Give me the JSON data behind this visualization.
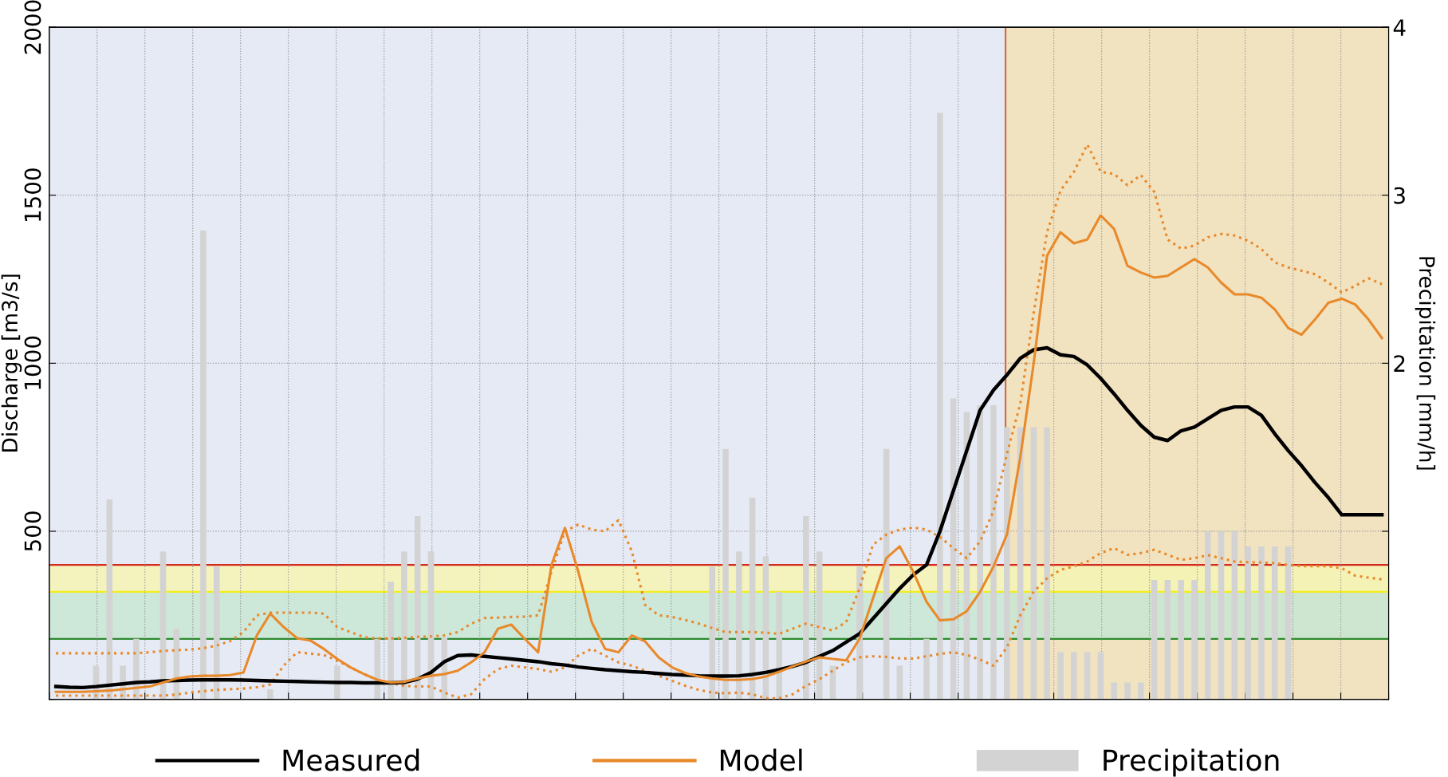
{
  "chart_data": {
    "type": "line",
    "ylabel": "Discharge [m3/s]",
    "y2label": "Precipitation [mm/h]",
    "categories": [
      null,
      null,
      null,
      null,
      null,
      null,
      null,
      null,
      null,
      null,
      null,
      null,
      null,
      null,
      null,
      null,
      null,
      null,
      null,
      null,
      null,
      null,
      null,
      null,
      null,
      null,
      null,
      null,
      null,
      null,
      null,
      null,
      null,
      null,
      null,
      null,
      null,
      null,
      null,
      null,
      null,
      null,
      null,
      null,
      null,
      null,
      null,
      null,
      null,
      null,
      null,
      null,
      null,
      null,
      null,
      null,
      null,
      null,
      null,
      null,
      null,
      null,
      null,
      null,
      null,
      null,
      null,
      null,
      null,
      null,
      null,
      null,
      null,
      null,
      null,
      null,
      null,
      null,
      null,
      null,
      null,
      null,
      null,
      null,
      null,
      null,
      null,
      null,
      null,
      null,
      null,
      null,
      null,
      null,
      null,
      null,
      null,
      null,
      null,
      null
    ],
    "ylim": [
      0,
      2000
    ],
    "yticks": [
      {
        "value": 0,
        "label": null
      },
      500,
      1000,
      1500,
      2000
    ],
    "y2lim": [
      0,
      4
    ],
    "y2ticks": [
      {
        "value": 0,
        "label": null
      },
      {
        "value": 1,
        "label": null
      },
      2,
      3,
      4
    ],
    "grid": true,
    "legend": "bottom",
    "tick_labels": "y",
    "series": [
      {
        "type": "bar",
        "name": "Precipitation",
        "color": "#d3d3d3",
        "axis": "y2",
        "values": [
          0,
          0,
          0,
          0.2,
          1.19,
          0.2,
          0.36,
          0,
          0.88,
          0.42,
          0,
          2.79,
          0.79,
          0,
          0,
          0,
          0.06,
          0,
          0,
          0,
          0,
          0.2,
          0,
          0,
          0.36,
          0.7,
          0.88,
          1.09,
          0.88,
          0.37,
          0,
          0,
          0,
          0,
          0,
          0,
          0,
          0,
          0,
          0,
          0,
          0,
          0,
          0,
          0,
          0,
          0,
          0,
          0,
          0.79,
          1.49,
          0.88,
          1.2,
          0.85,
          0.64,
          0,
          1.09,
          0.88,
          0.2,
          0,
          0.79,
          0,
          1.49,
          0.2,
          0,
          0.36,
          3.49,
          1.79,
          1.71,
          1.75,
          1.75,
          1.62,
          1.62,
          1.62,
          1.62,
          0.28,
          0.28,
          0.28,
          0.28,
          0.1,
          0.1,
          0.1,
          0.71,
          0.71,
          0.71,
          0.71,
          1.0,
          1.0,
          1.0,
          0.91,
          0.91,
          0.91,
          0.91,
          0,
          0,
          0,
          0,
          0,
          0,
          0
        ]
      },
      {
        "color": "#e8892a",
        "line_style": "dotted",
        "values": [
          137,
          137,
          137,
          137,
          137,
          137,
          137,
          140,
          144,
          146,
          148,
          152,
          160,
          173,
          200,
          250,
          258,
          258,
          258,
          258,
          255,
          215,
          200,
          185,
          181,
          181,
          183,
          186,
          187,
          190,
          200,
          225,
          242,
          243,
          245,
          246,
          250,
          380,
          500,
          520,
          505,
          500,
          533,
          440,
          280,
          250,
          245,
          236,
          225,
          212,
          200,
          200,
          200,
          198,
          195,
          210,
          225,
          215,
          205,
          230,
          330,
          460,
          490,
          505,
          511,
          505,
          483,
          450,
          420,
          470,
          560,
          730,
          880,
          1150,
          1390,
          1514,
          1569,
          1651,
          1570,
          1563,
          1530,
          1560,
          1510,
          1368,
          1341,
          1350,
          1375,
          1385,
          1380,
          1365,
          1340,
          1300,
          1285,
          1275,
          1265,
          1240,
          1211,
          1230,
          1253,
          1235
        ]
      },
      {
        "color": "#e8892a",
        "line_style": "dotted",
        "values": [
          11,
          11,
          11,
          11,
          11,
          11,
          11,
          11,
          11,
          14,
          20,
          24,
          28,
          30,
          32,
          36,
          44,
          100,
          140,
          136,
          132,
          115,
          95,
          75,
          58,
          48,
          40,
          38,
          38,
          20,
          5,
          15,
          60,
          90,
          100,
          95,
          90,
          82,
          95,
          130,
          150,
          130,
          110,
          100,
          85,
          70,
          55,
          40,
          28,
          20,
          18,
          20,
          15,
          3,
          3,
          15,
          40,
          60,
          85,
          110,
          125,
          128,
          126,
          122,
          121,
          128,
          135,
          140,
          132,
          118,
          100,
          154,
          250,
          320,
          360,
          385,
          396,
          410,
          435,
          450,
          430,
          435,
          445,
          430,
          415,
          420,
          429,
          420,
          410,
          408,
          407,
          405,
          400,
          396,
          396,
          396,
          390,
          368,
          362,
          357
        ]
      },
      {
        "name": "Measured",
        "color": "#000000",
        "line_style": "solid",
        "values": [
          38,
          36,
          35,
          38,
          42,
          46,
          50,
          52,
          55,
          56,
          57,
          58,
          58,
          58,
          57,
          56,
          55,
          54,
          53,
          52,
          51,
          50,
          50,
          49,
          49,
          49,
          50,
          60,
          80,
          112,
          130,
          132,
          128,
          124,
          120,
          116,
          112,
          106,
          102,
          96,
          92,
          88,
          85,
          82,
          80,
          77,
          74,
          72,
          70,
          69,
          69,
          70,
          74,
          80,
          88,
          98,
          110,
          128,
          145,
          170,
          195,
          240,
          285,
          330,
          370,
          400,
          500,
          620,
          740,
          860,
          920,
          965,
          1015,
          1040,
          1046,
          1025,
          1020,
          995,
          955,
          909,
          860,
          815,
          780,
          770,
          799,
          810,
          835,
          860,
          870,
          870,
          845,
          790,
          740,
          695,
          645,
          600,
          549,
          549,
          549,
          549
        ]
      },
      {
        "name": "Model",
        "color": "#e8892a",
        "line_style": "solid",
        "values": [
          22,
          22,
          22,
          24,
          26,
          30,
          34,
          38,
          50,
          62,
          68,
          70,
          70,
          72,
          80,
          190,
          255,
          215,
          182,
          175,
          150,
          120,
          95,
          75,
          58,
          50,
          52,
          62,
          70,
          75,
          85,
          110,
          140,
          210,
          222,
          180,
          140,
          400,
          510,
          380,
          230,
          150,
          140,
          190,
          172,
          125,
          95,
          78,
          68,
          62,
          58,
          58,
          60,
          68,
          82,
          98,
          112,
          125,
          120,
          116,
          180,
          300,
          420,
          455,
          380,
          290,
          235,
          238,
          262,
          320,
          395,
          490,
          720,
          1000,
          1320,
          1390,
          1357,
          1368,
          1440,
          1400,
          1290,
          1270,
          1255,
          1260,
          1285,
          1310,
          1285,
          1240,
          1205,
          1205,
          1195,
          1160,
          1105,
          1085,
          1130,
          1180,
          1192,
          1175,
          1130,
          1075
        ]
      }
    ],
    "bands": [
      {
        "axis": "y",
        "from": 320,
        "to": 400,
        "color": "#f6f4b4"
      },
      {
        "axis": "y",
        "from": 180,
        "to": 320,
        "color": "#c8e6d2"
      }
    ],
    "ref_lines": [
      {
        "axis": "y",
        "value": 400,
        "color": "#d42a1e"
      },
      {
        "axis": "y",
        "value": 320,
        "color": "#f4ee1c"
      },
      {
        "axis": "y",
        "value": 180,
        "color": "#2e8b2e"
      }
    ]
  }
}
